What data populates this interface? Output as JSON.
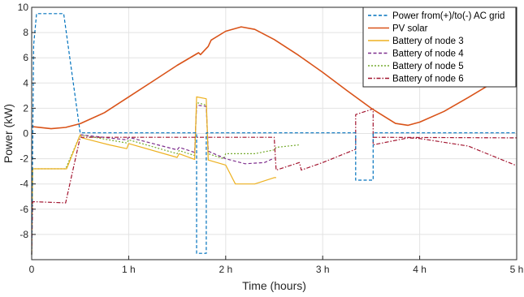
{
  "chart_data": {
    "type": "line",
    "xlabel": "Time (hours)",
    "ylabel": "Power (kW)",
    "xlim": [
      0,
      5
    ],
    "ylim": [
      -10,
      10
    ],
    "grid": true,
    "legend_position": "top-right",
    "x_ticks": [
      {
        "value": 0,
        "label": "0"
      },
      {
        "value": 1,
        "label": "1 h"
      },
      {
        "value": 2,
        "label": "2 h"
      },
      {
        "value": 3,
        "label": "3 h"
      },
      {
        "value": 4,
        "label": "4 h"
      },
      {
        "value": 5,
        "label": "5 h"
      }
    ],
    "y_ticks": [
      {
        "value": 10,
        "label": "10"
      },
      {
        "value": 8,
        "label": "8"
      },
      {
        "value": 6,
        "label": "6"
      },
      {
        "value": 4,
        "label": "4"
      },
      {
        "value": 2,
        "label": "2"
      },
      {
        "value": 0,
        "label": "0"
      },
      {
        "value": -2,
        "label": "-2"
      },
      {
        "value": -4,
        "label": "-4"
      },
      {
        "value": -6,
        "label": "-6"
      },
      {
        "value": -8,
        "label": "-8"
      }
    ],
    "series": [
      {
        "name": "Power from(+)/to(-) AC grid",
        "color": "#0072BD",
        "dash": "4,2.5",
        "points": [
          [
            0,
            -9.6
          ],
          [
            0.02,
            7.0
          ],
          [
            0.05,
            9.5
          ],
          [
            0.33,
            9.5
          ],
          [
            0.5,
            0.05
          ],
          [
            1.7,
            0.05
          ],
          [
            1.7,
            -9.5
          ],
          [
            1.8,
            -9.5
          ],
          [
            1.8,
            0.05
          ],
          [
            3.34,
            0.05
          ],
          [
            3.34,
            -3.7
          ],
          [
            3.52,
            -3.7
          ],
          [
            3.52,
            0.05
          ],
          [
            5.0,
            0.05
          ]
        ]
      },
      {
        "name": "PV solar",
        "color": "#D95319",
        "dash": "",
        "points": [
          [
            0,
            0.55
          ],
          [
            0.2,
            0.38
          ],
          [
            0.35,
            0.48
          ],
          [
            0.5,
            0.78
          ],
          [
            0.75,
            1.65
          ],
          [
            1.0,
            2.9
          ],
          [
            1.25,
            4.15
          ],
          [
            1.5,
            5.4
          ],
          [
            1.72,
            6.4
          ],
          [
            1.74,
            6.25
          ],
          [
            1.82,
            6.9
          ],
          [
            1.85,
            7.4
          ],
          [
            2.0,
            8.1
          ],
          [
            2.16,
            8.45
          ],
          [
            2.3,
            8.25
          ],
          [
            2.5,
            7.45
          ],
          [
            2.75,
            6.2
          ],
          [
            3.0,
            4.85
          ],
          [
            3.25,
            3.4
          ],
          [
            3.5,
            2.0
          ],
          [
            3.75,
            0.8
          ],
          [
            3.88,
            0.65
          ],
          [
            4.0,
            0.9
          ],
          [
            4.25,
            1.75
          ],
          [
            4.5,
            2.85
          ],
          [
            4.75,
            4.0
          ],
          [
            5.0,
            5.1
          ]
        ]
      },
      {
        "name": "Battery of node 3",
        "color": "#EDB120",
        "dash": "",
        "points": [
          [
            0,
            -9.6
          ],
          [
            0.01,
            -2.8
          ],
          [
            0.02,
            -2.8
          ],
          [
            0.36,
            -2.8
          ],
          [
            0.5,
            -0.1
          ],
          [
            0.52,
            -0.35
          ],
          [
            0.8,
            -0.9
          ],
          [
            0.98,
            -1.2
          ],
          [
            1.0,
            -0.8
          ],
          [
            1.5,
            -1.9
          ],
          [
            1.52,
            -1.6
          ],
          [
            1.68,
            -2.05
          ],
          [
            1.7,
            2.9
          ],
          [
            1.8,
            2.75
          ],
          [
            1.82,
            -2.1
          ],
          [
            2.0,
            -2.5
          ],
          [
            2.1,
            -4.0
          ],
          [
            2.3,
            -4.0
          ],
          [
            2.5,
            -3.5
          ],
          [
            2.52,
            -3.5
          ]
        ]
      },
      {
        "name": "Battery of node 4",
        "color": "#7E2F8E",
        "dash": "4,2.5",
        "points": [
          [
            0.5,
            -0.1
          ],
          [
            0.98,
            -0.5
          ],
          [
            1.0,
            -0.3
          ],
          [
            1.5,
            -1.3
          ],
          [
            1.52,
            -1.1
          ],
          [
            1.68,
            -1.5
          ],
          [
            1.7,
            2.25
          ],
          [
            1.8,
            2.15
          ],
          [
            1.82,
            -1.4
          ],
          [
            2.0,
            -2.0
          ],
          [
            2.2,
            -2.4
          ],
          [
            2.4,
            -2.3
          ],
          [
            2.5,
            -1.95
          ]
        ]
      },
      {
        "name": "Battery of node 5",
        "color": "#77AC30",
        "dash": "2,2",
        "points": [
          [
            0,
            -9.6
          ],
          [
            0.01,
            -2.8
          ],
          [
            0.35,
            -2.8
          ],
          [
            0.5,
            -0.1
          ],
          [
            0.98,
            -0.75
          ],
          [
            1.0,
            -0.5
          ],
          [
            1.5,
            -1.6
          ],
          [
            1.52,
            -1.35
          ],
          [
            1.68,
            -1.75
          ],
          [
            1.7,
            2.45
          ],
          [
            1.8,
            2.25
          ],
          [
            1.82,
            -1.6
          ],
          [
            1.98,
            -2.0
          ],
          [
            2.0,
            -1.6
          ],
          [
            2.3,
            -1.6
          ],
          [
            2.5,
            -1.3
          ],
          [
            2.52,
            -1.1
          ],
          [
            2.76,
            -0.9
          ]
        ]
      },
      {
        "name": "Battery of node 6",
        "color": "#A2142F",
        "dash": "5,2,1.5,2",
        "points": [
          [
            0,
            -9.6
          ],
          [
            0.01,
            -5.4
          ],
          [
            0.35,
            -5.5
          ],
          [
            0.5,
            -0.3
          ],
          [
            1.68,
            -0.3
          ],
          [
            1.7,
            -0.3
          ],
          [
            1.8,
            -0.3
          ],
          [
            1.82,
            -0.3
          ],
          [
            2.5,
            -0.3
          ],
          [
            2.52,
            -2.9
          ],
          [
            2.76,
            -2.3
          ],
          [
            2.78,
            -2.9
          ],
          [
            3.0,
            -2.3
          ],
          [
            3.34,
            -1.25
          ],
          [
            3.34,
            1.5
          ],
          [
            3.52,
            1.95
          ],
          [
            3.52,
            -0.9
          ],
          [
            3.88,
            -0.35
          ],
          [
            4.0,
            -0.4
          ],
          [
            4.5,
            -1.0
          ],
          [
            5.0,
            -2.55
          ]
        ]
      },
      {
        "name": "",
        "color": "#A2142F",
        "dash": "5,2,1.5,2",
        "legend": false,
        "points": [
          [
            3.52,
            -0.3
          ],
          [
            5.0,
            -0.35
          ]
        ]
      }
    ]
  }
}
